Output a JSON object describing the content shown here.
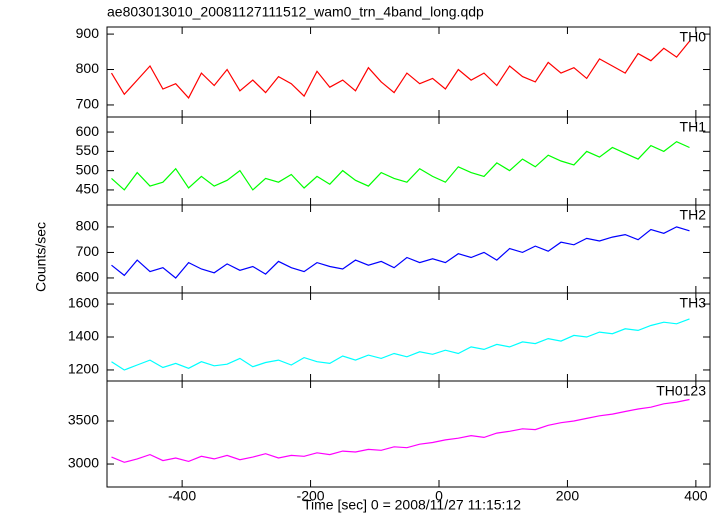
{
  "chart_data": [
    {
      "type": "line",
      "title": "ae803013010_20081127111512_wam0_trn_4band_long.qdp",
      "x": [
        -510,
        -490,
        -470,
        -450,
        -430,
        -410,
        -390,
        -370,
        -350,
        -330,
        -310,
        -290,
        -270,
        -250,
        -230,
        -210,
        -190,
        -170,
        -150,
        -130,
        -110,
        -90,
        -70,
        -50,
        -30,
        -10,
        10,
        30,
        50,
        70,
        90,
        110,
        130,
        150,
        170,
        190,
        210,
        230,
        250,
        270,
        290,
        310,
        330,
        350,
        370,
        390
      ],
      "series": [
        {
          "name": "TH0",
          "color": "#ff0000",
          "values": [
            790,
            730,
            770,
            810,
            745,
            760,
            720,
            790,
            755,
            800,
            740,
            770,
            735,
            780,
            760,
            725,
            795,
            750,
            770,
            740,
            805,
            765,
            735,
            790,
            760,
            775,
            745,
            800,
            770,
            790,
            755,
            810,
            780,
            765,
            820,
            790,
            805,
            775,
            830,
            810,
            790,
            845,
            825,
            860,
            835,
            880
          ]
        }
      ],
      "ylim": [
        666,
        920
      ],
      "yticks": [
        700,
        800,
        900
      ]
    },
    {
      "type": "line",
      "x": [
        -510,
        -490,
        -470,
        -450,
        -430,
        -410,
        -390,
        -370,
        -350,
        -330,
        -310,
        -290,
        -270,
        -250,
        -230,
        -210,
        -190,
        -170,
        -150,
        -130,
        -110,
        -90,
        -70,
        -50,
        -30,
        -10,
        10,
        30,
        50,
        70,
        90,
        110,
        130,
        150,
        170,
        190,
        210,
        230,
        250,
        270,
        290,
        310,
        330,
        350,
        370,
        390
      ],
      "series": [
        {
          "name": "TH1",
          "color": "#00ff00",
          "values": [
            480,
            450,
            495,
            460,
            470,
            505,
            455,
            485,
            460,
            475,
            500,
            450,
            480,
            470,
            490,
            455,
            485,
            465,
            500,
            475,
            460,
            495,
            480,
            470,
            505,
            485,
            470,
            510,
            495,
            485,
            520,
            500,
            530,
            510,
            540,
            525,
            515,
            550,
            535,
            560,
            545,
            530,
            565,
            550,
            575,
            560
          ]
        }
      ],
      "ylim": [
        411,
        639
      ],
      "yticks": [
        450,
        500,
        550,
        600
      ]
    },
    {
      "type": "line",
      "y_label": "Counts/sec",
      "x": [
        -510,
        -490,
        -470,
        -450,
        -430,
        -410,
        -390,
        -370,
        -350,
        -330,
        -310,
        -290,
        -270,
        -250,
        -230,
        -210,
        -190,
        -170,
        -150,
        -130,
        -110,
        -90,
        -70,
        -50,
        -30,
        -10,
        10,
        30,
        50,
        70,
        90,
        110,
        130,
        150,
        170,
        190,
        210,
        230,
        250,
        270,
        290,
        310,
        330,
        350,
        370,
        390
      ],
      "series": [
        {
          "name": "TH2",
          "color": "#0000ff",
          "values": [
            650,
            610,
            670,
            625,
            640,
            600,
            660,
            635,
            620,
            655,
            630,
            645,
            615,
            665,
            640,
            625,
            660,
            645,
            635,
            670,
            650,
            665,
            640,
            680,
            660,
            675,
            660,
            695,
            680,
            700,
            670,
            715,
            700,
            725,
            705,
            740,
            730,
            755,
            745,
            760,
            770,
            750,
            790,
            775,
            800,
            785
          ]
        }
      ],
      "ylim": [
        541,
        886
      ],
      "yticks": [
        600,
        700,
        800
      ]
    },
    {
      "type": "line",
      "x": [
        -510,
        -490,
        -470,
        -450,
        -430,
        -410,
        -390,
        -370,
        -350,
        -330,
        -310,
        -290,
        -270,
        -250,
        -230,
        -210,
        -190,
        -170,
        -150,
        -130,
        -110,
        -90,
        -70,
        -50,
        -30,
        -10,
        10,
        30,
        50,
        70,
        90,
        110,
        130,
        150,
        170,
        190,
        210,
        230,
        250,
        270,
        290,
        310,
        330,
        350,
        370,
        390
      ],
      "series": [
        {
          "name": "TH3",
          "color": "#00ffff",
          "values": [
            1250,
            1200,
            1230,
            1260,
            1215,
            1240,
            1210,
            1250,
            1225,
            1235,
            1270,
            1220,
            1245,
            1260,
            1230,
            1275,
            1250,
            1240,
            1285,
            1260,
            1290,
            1270,
            1300,
            1280,
            1310,
            1295,
            1320,
            1300,
            1340,
            1325,
            1355,
            1340,
            1370,
            1360,
            1390,
            1375,
            1410,
            1400,
            1430,
            1420,
            1450,
            1440,
            1470,
            1490,
            1480,
            1510
          ]
        }
      ],
      "ylim": [
        1133,
        1667
      ],
      "yticks": [
        1200,
        1400,
        1600
      ]
    },
    {
      "type": "line",
      "x_label": "Time [sec] 0 = 2008/11/27 11:15:12",
      "x": [
        -510,
        -490,
        -470,
        -450,
        -430,
        -410,
        -390,
        -370,
        -350,
        -330,
        -310,
        -290,
        -270,
        -250,
        -230,
        -210,
        -190,
        -170,
        -150,
        -130,
        -110,
        -90,
        -70,
        -50,
        -30,
        -10,
        10,
        30,
        50,
        70,
        90,
        110,
        130,
        150,
        170,
        190,
        210,
        230,
        250,
        270,
        290,
        310,
        330,
        350,
        370,
        390
      ],
      "series": [
        {
          "name": "TH0123",
          "color": "#ff00ff",
          "values": [
            3080,
            3020,
            3060,
            3110,
            3040,
            3070,
            3030,
            3090,
            3060,
            3100,
            3050,
            3080,
            3120,
            3070,
            3100,
            3090,
            3130,
            3110,
            3150,
            3140,
            3170,
            3160,
            3200,
            3190,
            3230,
            3250,
            3280,
            3300,
            3330,
            3310,
            3360,
            3380,
            3410,
            3400,
            3450,
            3480,
            3500,
            3530,
            3560,
            3580,
            3610,
            3640,
            3660,
            3700,
            3720,
            3750
          ]
        }
      ],
      "ylim": [
        2733,
        3965
      ],
      "yticks": [
        3000,
        3500
      ],
      "xlim": [
        -517,
        422
      ],
      "xticks": [
        -400,
        -200,
        0,
        200,
        400
      ]
    }
  ]
}
